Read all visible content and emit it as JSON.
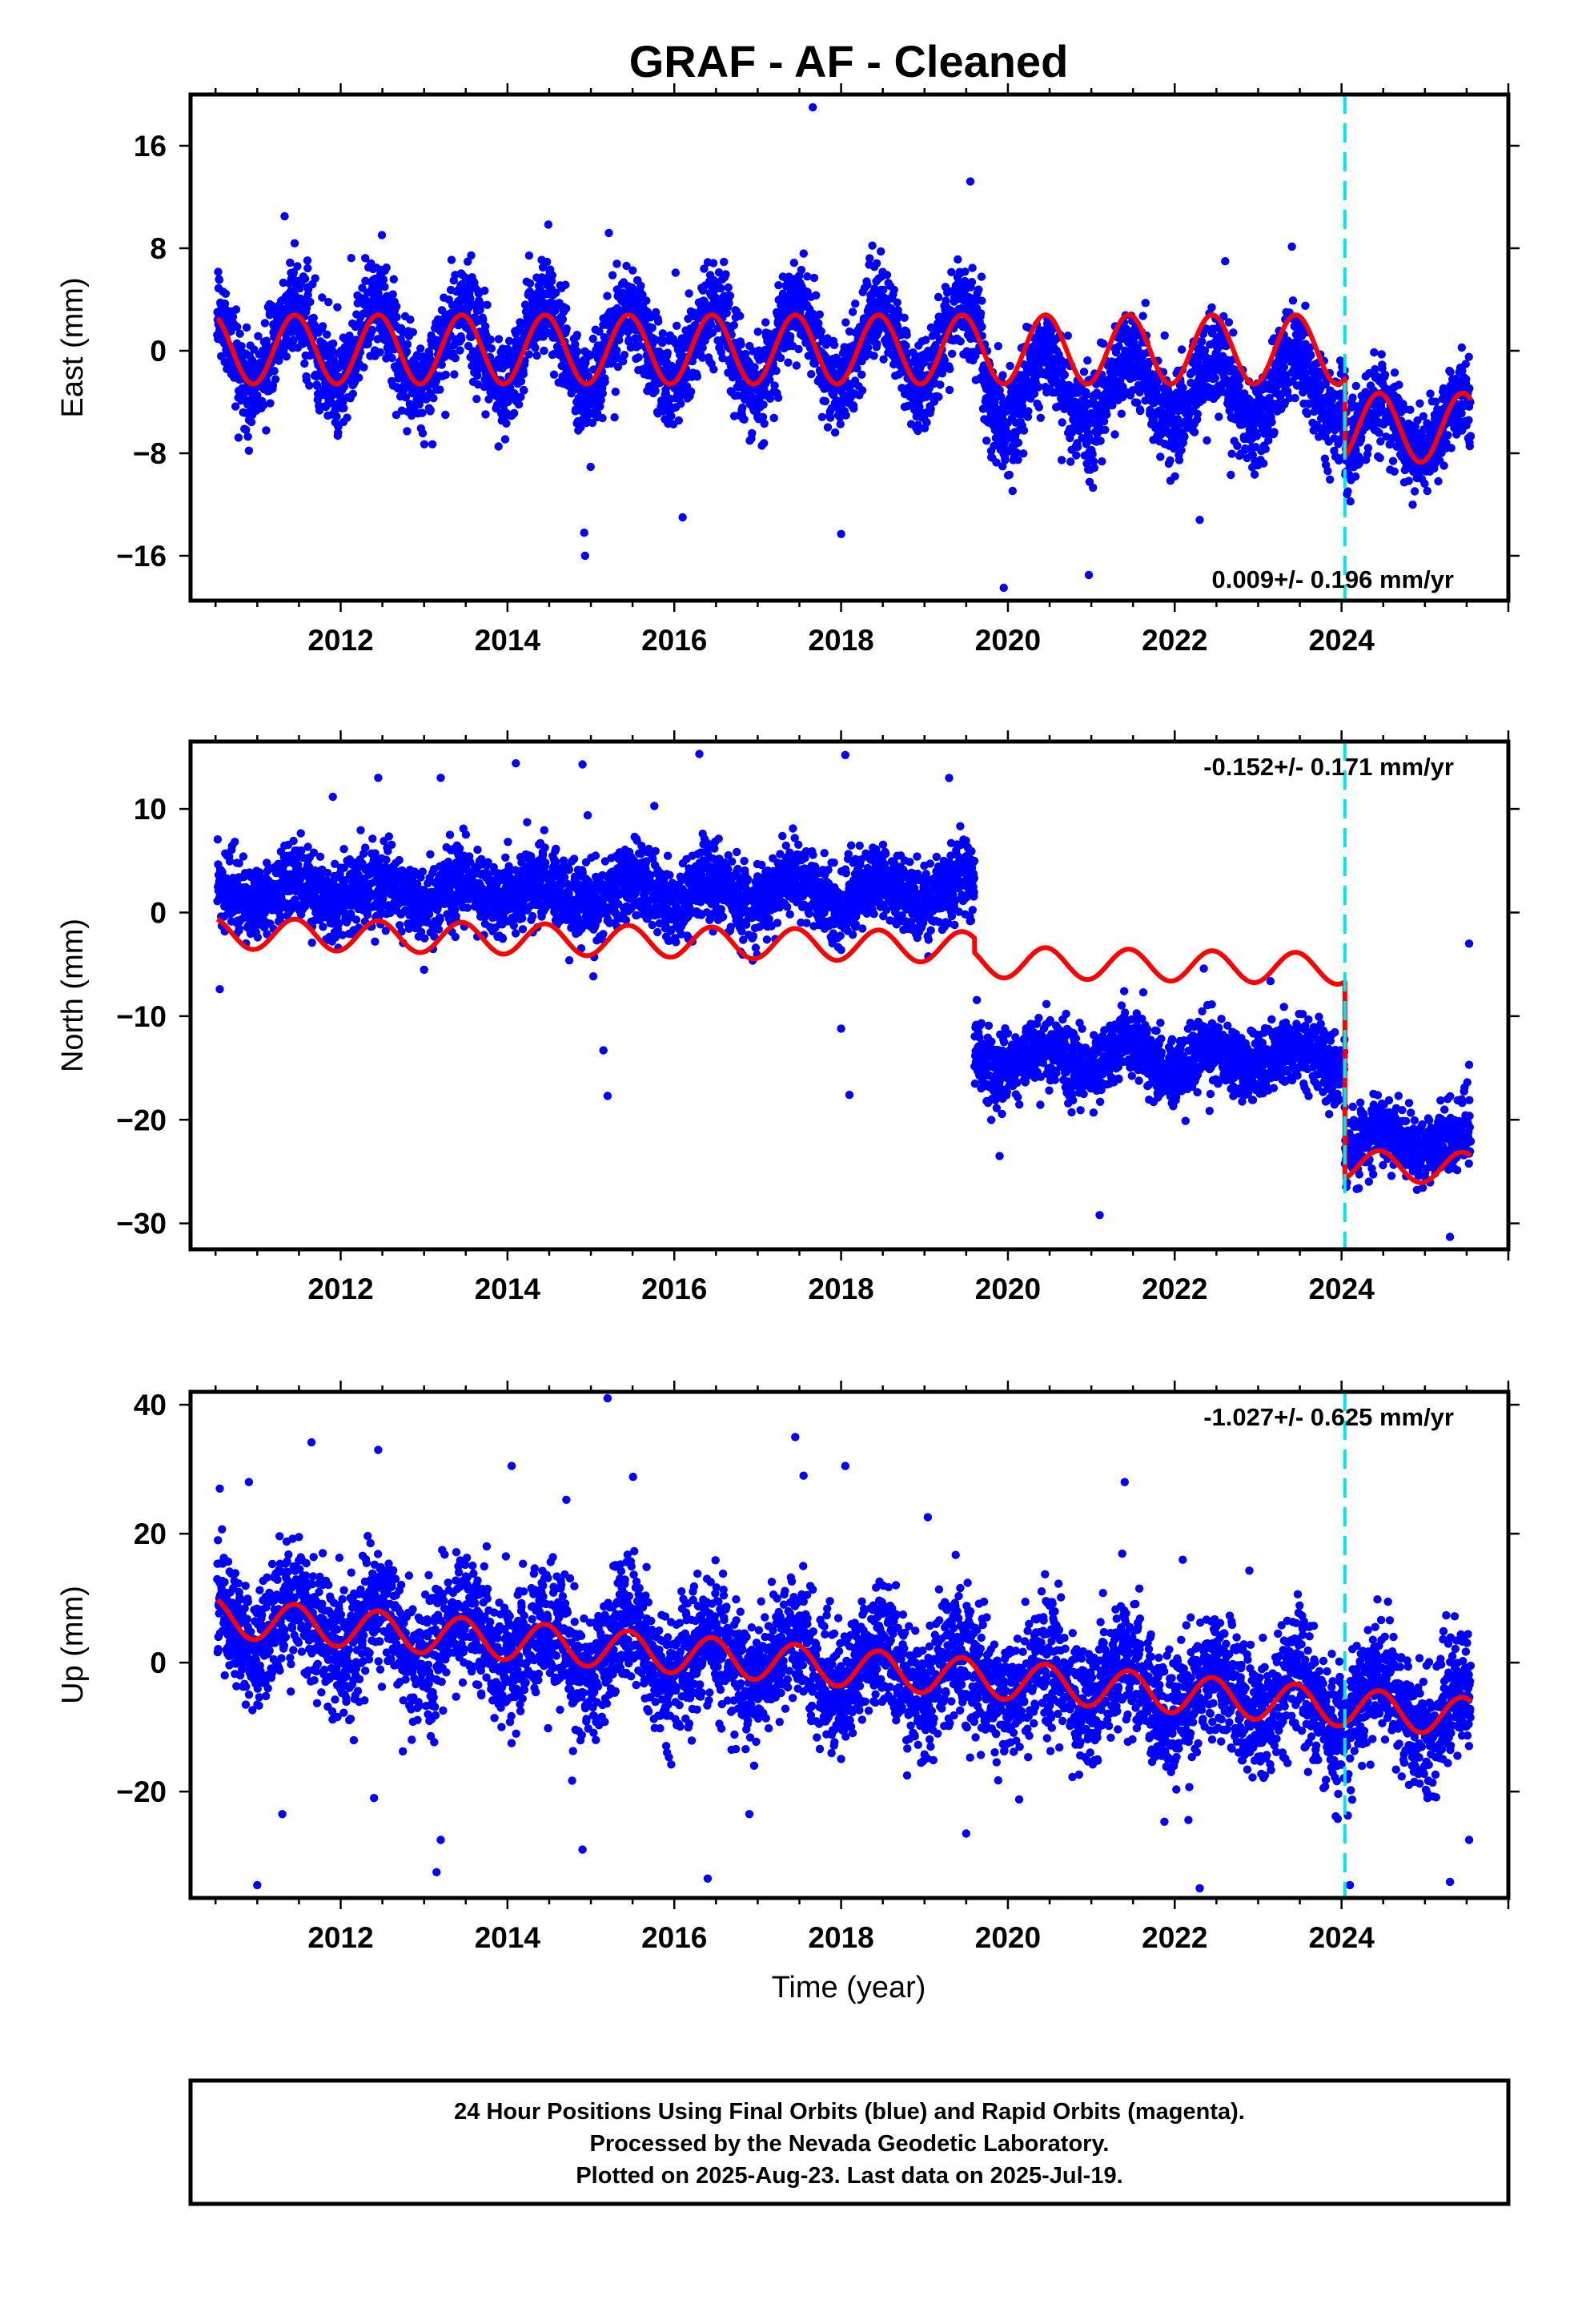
{
  "figure": {
    "title": "GRAF  - AF - Cleaned",
    "xlabel": "Time (year)",
    "footer_lines": [
      "24 Hour Positions Using Final Orbits (blue) and Rapid Orbits (magenta).",
      "Processed by the Nevada Geodetic Laboratory.",
      "Plotted on 2025-Aug-23. Last data on 2025-Jul-19."
    ],
    "colors": {
      "data": "#0000ff",
      "model": "#ff0000",
      "event_line": "#00e5e5",
      "frame": "#000000"
    }
  },
  "chart_data": [
    {
      "type": "scatter",
      "name": "east",
      "ylabel": "East (mm)",
      "rate_label": "0.009+/- 0.196 mm/yr",
      "rate_position": "bottom-right",
      "xlim": [
        2010.2,
        2026.0
      ],
      "ylim": [
        -19.5,
        20
      ],
      "xticks": [
        2012,
        2014,
        2016,
        2018,
        2020,
        2022,
        2024
      ],
      "xtick_labels": [
        "2012",
        "2014",
        "2016",
        "2018",
        "2020",
        "2022",
        "2024"
      ],
      "yticks": [
        -16,
        -8,
        0,
        8,
        16
      ],
      "ytick_labels": [
        "−16",
        "−8",
        "0",
        "8",
        "16"
      ],
      "event_line_x": 2024.04,
      "series": [
        {
          "kind": "daily_positions",
          "color": "#0000ff",
          "x_range": [
            2010.52,
            2025.55
          ],
          "segments": [
            {
              "x": [
                2010.52,
                2019.7
              ],
              "mean": 0.3,
              "amplitude": 3.2,
              "scatter": 1.8
            },
            {
              "x": [
                2019.7,
                2024.04
              ],
              "mean": -3.0,
              "amplitude": 2.5,
              "scatter": 1.8
            },
            {
              "x": [
                2024.04,
                2025.55
              ],
              "mean": -6.0,
              "amplitude": 2.3,
              "scatter": 1.6
            }
          ],
          "outliers": [
            [
              2017.66,
              19
            ],
            [
              2014.93,
              -16
            ],
            [
              2014.92,
              -14.2
            ],
            [
              2019.95,
              -18.5
            ],
            [
              2018.0,
              -14.3
            ],
            [
              2010.9,
              -7.8
            ],
            [
              2020.97,
              -17.5
            ],
            [
              2022.3,
              -13.2
            ],
            [
              2016.1,
              -13
            ],
            [
              2013.1,
              -7.3
            ]
          ]
        },
        {
          "kind": "model_fit",
          "color": "#ff0000",
          "segments": [
            {
              "x": [
                2010.52,
                2019.6
              ],
              "offset": 0.1,
              "trend": 0.0,
              "amplitude": 2.7
            },
            {
              "x": [
                2019.6,
                2024.04
              ],
              "offset": 0.1,
              "trend": 0.0,
              "amplitude": 2.7
            },
            {
              "x": [
                2024.04,
                2025.55
              ],
              "offset": -6.0,
              "trend": 0.0,
              "amplitude": 2.7
            }
          ]
        }
      ]
    },
    {
      "type": "scatter",
      "name": "north",
      "ylabel": "North (mm)",
      "rate_label": "-0.152+/- 0.171 mm/yr",
      "rate_position": "top-right",
      "xlim": [
        2010.2,
        2026.0
      ],
      "ylim": [
        -32.5,
        16.5
      ],
      "xticks": [
        2012,
        2014,
        2016,
        2018,
        2020,
        2022,
        2024
      ],
      "xtick_labels": [
        "2012",
        "2014",
        "2016",
        "2018",
        "2020",
        "2022",
        "2024"
      ],
      "yticks": [
        -30,
        -20,
        -10,
        0,
        10
      ],
      "ytick_labels": [
        "−30",
        "−20",
        "−10",
        "0",
        "10"
      ],
      "event_line_x": 2024.04,
      "series": [
        {
          "kind": "daily_positions",
          "color": "#0000ff",
          "x_range": [
            2010.52,
            2025.55
          ],
          "segments": [
            {
              "x": [
                2010.52,
                2019.6
              ],
              "mean": 2.0,
              "amplitude": 1.2,
              "scatter": 1.8
            },
            {
              "x": [
                2019.6,
                2024.04
              ],
              "mean": -14.0,
              "amplitude": 1.2,
              "scatter": 1.6
            },
            {
              "x": [
                2024.04,
                2025.55
              ],
              "mean": -22.0,
              "amplitude": 1.2,
              "scatter": 1.6
            }
          ],
          "outliers": [
            [
              2016.3,
              15.3
            ],
            [
              2018.05,
              15.2
            ],
            [
              2014.1,
              14.4
            ],
            [
              2014.9,
              14.3
            ],
            [
              2012.45,
              13
            ],
            [
              2013.2,
              13
            ],
            [
              2015.15,
              -13.3
            ],
            [
              2015.2,
              -17.7
            ],
            [
              2018.1,
              -17.6
            ],
            [
              2018.0,
              -11.2
            ],
            [
              2021.1,
              -29.2
            ],
            [
              2025.3,
              -31.3
            ],
            [
              2025.53,
              -3
            ],
            [
              2025.53,
              -14.7
            ],
            [
              2010.55,
              -7.4
            ],
            [
              2019.9,
              -23.5
            ]
          ]
        },
        {
          "kind": "model_fit",
          "color": "#ff0000",
          "segments": [
            {
              "x": [
                2010.52,
                2019.6
              ],
              "offset": -2.0,
              "trend": -0.15,
              "amplitude": 1.5
            },
            {
              "x": [
                2019.6,
                2024.04
              ],
              "offset": -3.4,
              "trend": -0.15,
              "amplitude": 1.5
            },
            {
              "x": [
                2024.04,
                2025.55
              ],
              "offset": -22.4,
              "trend": -0.15,
              "amplitude": 1.5
            }
          ]
        }
      ]
    },
    {
      "type": "scatter",
      "name": "up",
      "ylabel": "Up (mm)",
      "rate_label": "-1.027+/- 0.625 mm/yr",
      "rate_position": "top-right",
      "xlim": [
        2010.2,
        2026.0
      ],
      "ylim": [
        -36.5,
        42
      ],
      "xticks": [
        2012,
        2014,
        2016,
        2018,
        2020,
        2022,
        2024
      ],
      "xtick_labels": [
        "2012",
        "2014",
        "2016",
        "2018",
        "2020",
        "2022",
        "2024"
      ],
      "yticks": [
        -20,
        0,
        20,
        40
      ],
      "ytick_labels": [
        "−20",
        "0",
        "20",
        "40"
      ],
      "event_line_x": 2024.04,
      "series": [
        {
          "kind": "daily_positions",
          "color": "#0000ff",
          "x_range": [
            2010.52,
            2025.55
          ],
          "segments": [
            {
              "x": [
                2010.52,
                2025.55
              ],
              "mean": 6.5,
              "trend": -0.95,
              "amplitude": 4.0,
              "scatter": 4.8
            }
          ],
          "outliers": [
            [
              2015.2,
              41
            ],
            [
              2017.45,
              35
            ],
            [
              2012.45,
              33
            ],
            [
              2014.05,
              30.5
            ],
            [
              2017.55,
              29
            ],
            [
              2018.05,
              30.5
            ],
            [
              2010.9,
              28
            ],
            [
              2010.55,
              27
            ],
            [
              2021.4,
              28
            ],
            [
              2011.0,
              -34.5
            ],
            [
              2013.15,
              -32.5
            ],
            [
              2012.4,
              -21
            ],
            [
              2016.4,
              -33.5
            ],
            [
              2022.3,
              -35
            ],
            [
              2024.1,
              -34.5
            ],
            [
              2025.3,
              -34
            ],
            [
              2014.9,
              -29
            ],
            [
              2013.2,
              -27.5
            ],
            [
              2025.53,
              -27.5
            ],
            [
              2019.5,
              -26.5
            ],
            [
              2016.9,
              -23.5
            ],
            [
              2011.3,
              -23.5
            ]
          ]
        },
        {
          "kind": "model_fit",
          "color": "#ff0000",
          "segments": [
            {
              "x": [
                2010.52,
                2025.55
              ],
              "offset": 7.0,
              "trend": -1.03,
              "amplitude": 3.0
            }
          ]
        }
      ]
    }
  ]
}
